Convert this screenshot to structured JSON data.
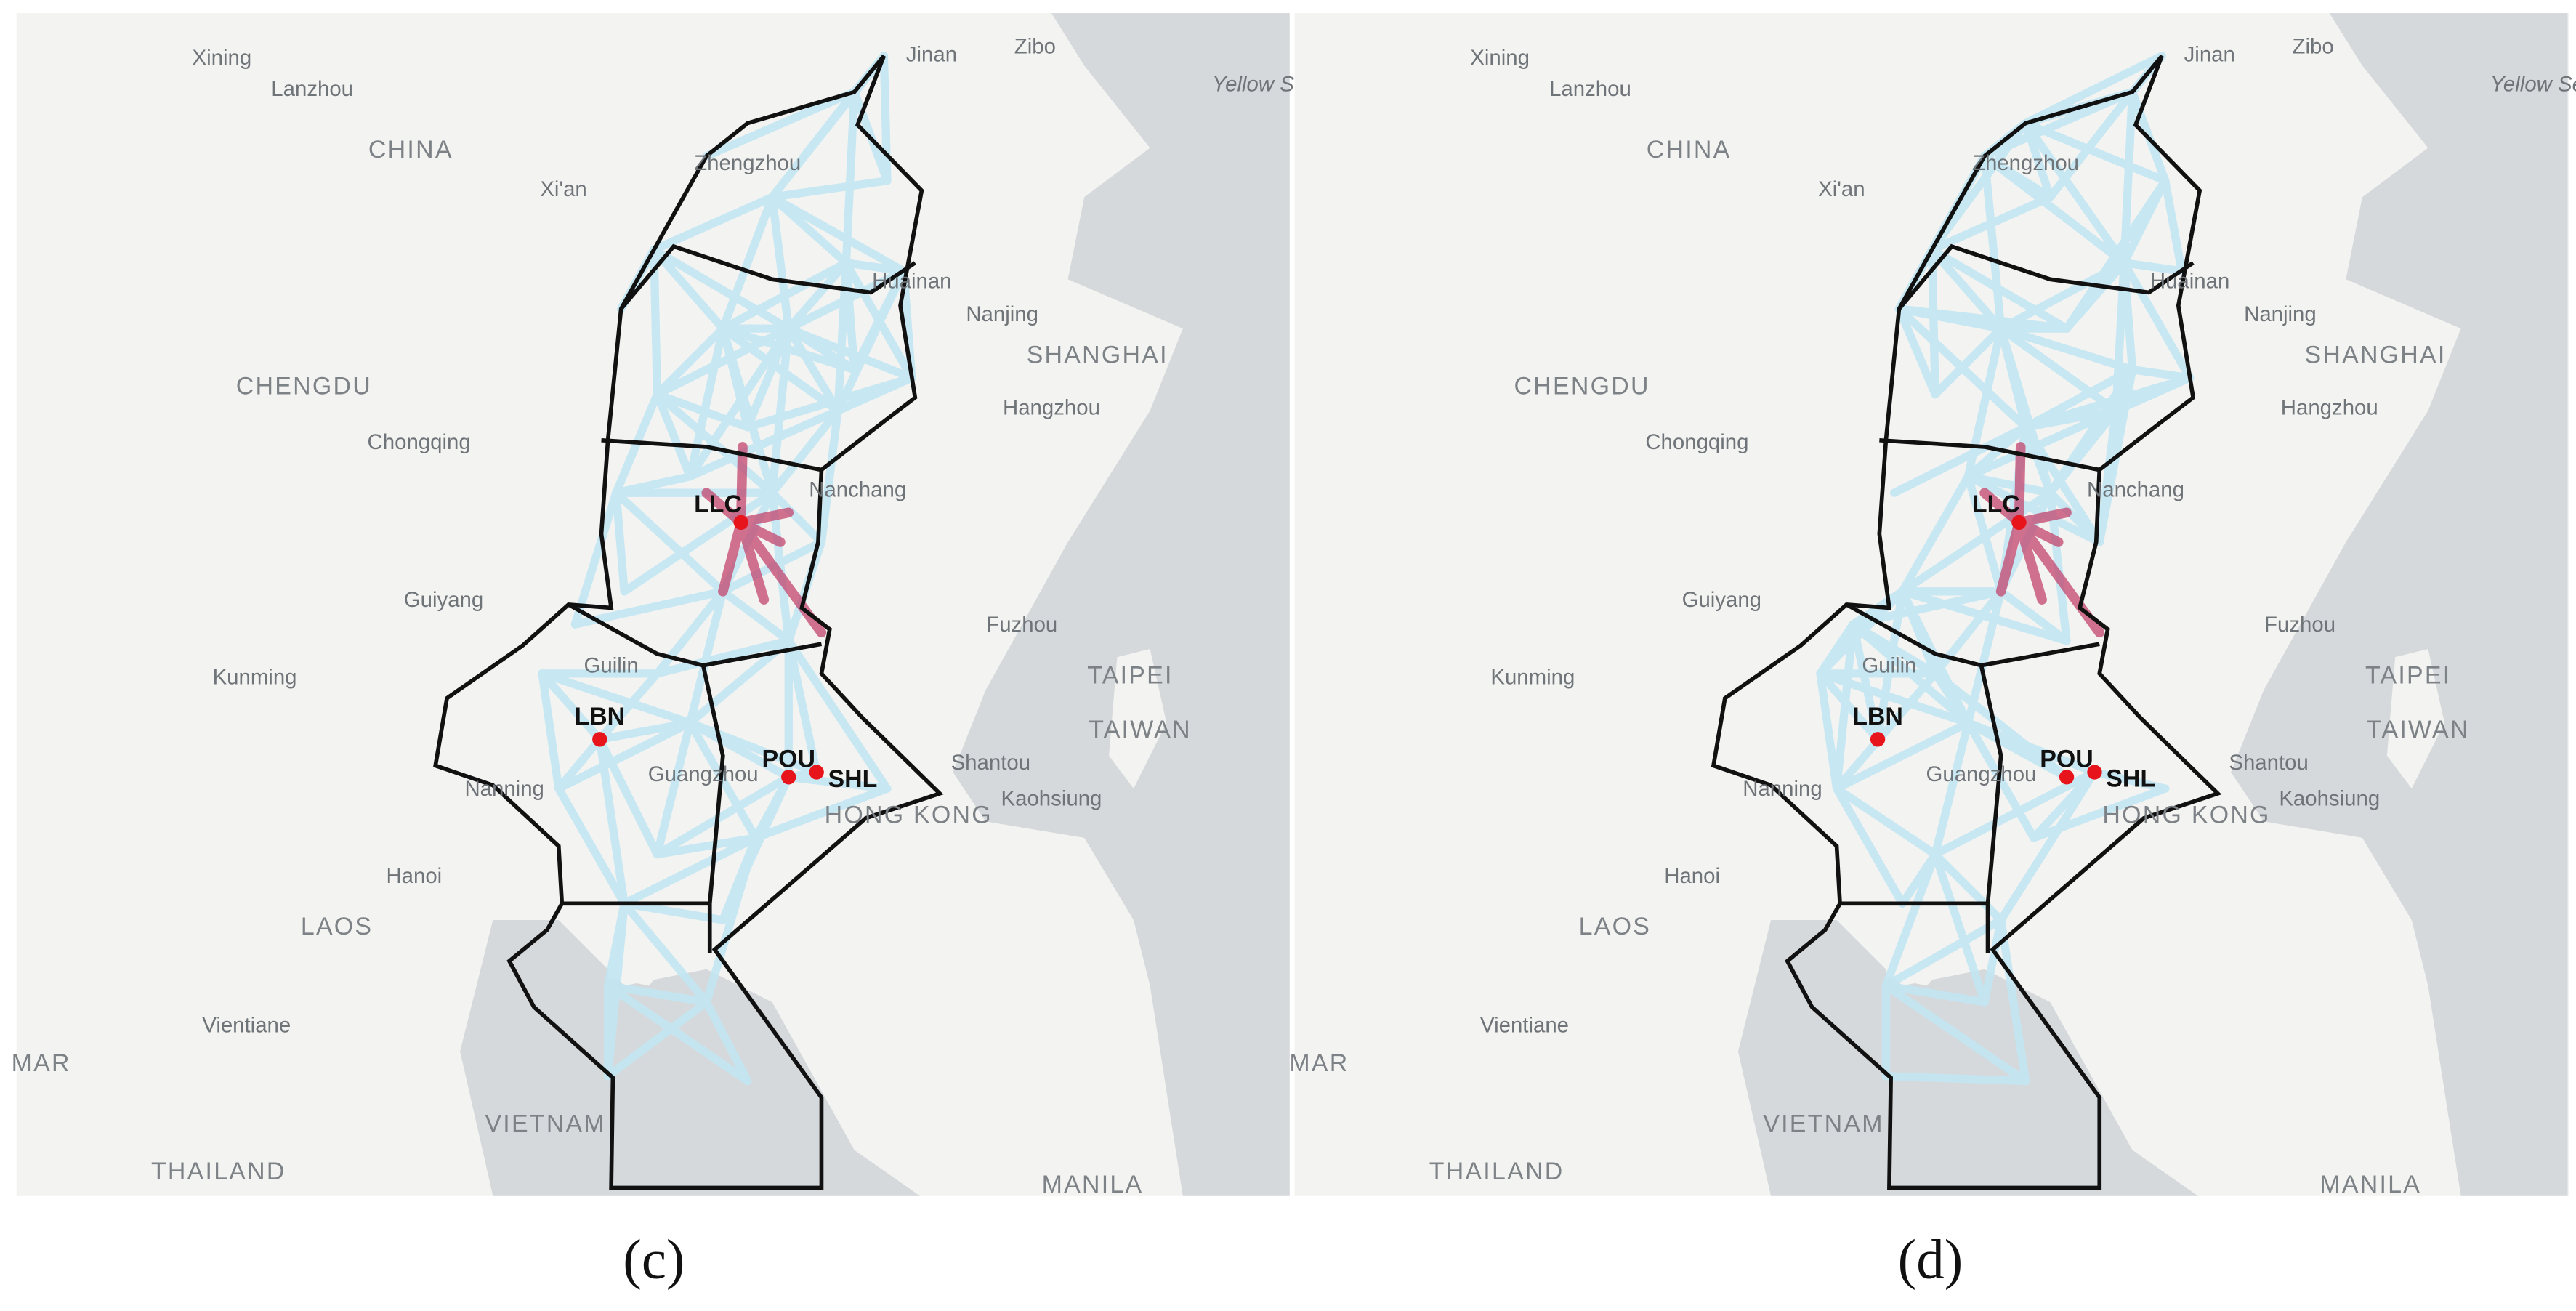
{
  "map_labels": [
    "Xining",
    "Lanzhou",
    "CHINA",
    "Xi'an",
    "Jinan",
    "Zibo",
    "Yellow Sea",
    "Zhengzhou",
    "Huainan",
    "Nanjing",
    "SHANGHAI",
    "CHENGDU",
    "Chongqing",
    "Hangzhou",
    "Nanchang",
    "Guiyang",
    "Fuzhou",
    "Kunming",
    "TAIPEI",
    "TAIWAN",
    "Guilin",
    "Nanning",
    "Guangzhou",
    "Shantou",
    "HONG KONG",
    "Kaohsiung",
    "Hanoi",
    "LAOS",
    "Vientiane",
    "VIETNAM",
    "THAILAND",
    "MANILA",
    "MAR"
  ],
  "airports": [
    "LLC",
    "LBN",
    "POU",
    "SHL"
  ],
  "panels": [
    {
      "caption": "(c)"
    },
    {
      "caption": "(d)"
    }
  ]
}
